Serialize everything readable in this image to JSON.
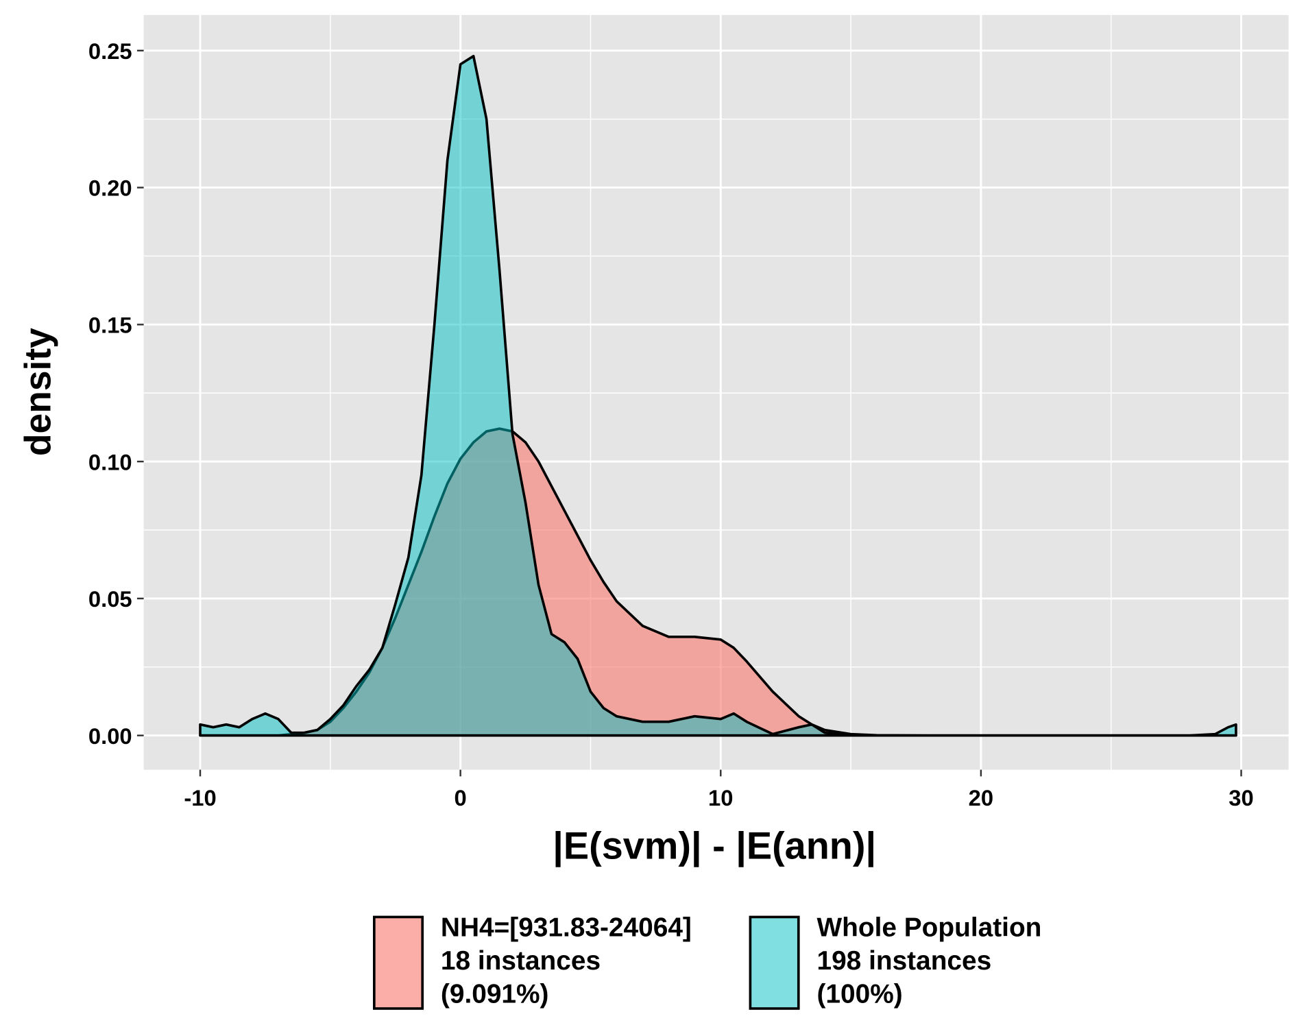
{
  "chart_data": {
    "type": "density",
    "x_label": "|E(svm)| - |E(ann)|",
    "y_label": "density",
    "x": [
      -10,
      -9.5,
      -9,
      -8.5,
      -8,
      -7.5,
      -7,
      -6.5,
      -6,
      -5.5,
      -5,
      -4.5,
      -4,
      -3.5,
      -3,
      -2.5,
      -2,
      -1.5,
      -1,
      -0.5,
      0,
      0.5,
      1,
      1.5,
      2,
      2.5,
      3,
      3.5,
      4,
      4.5,
      5,
      5.5,
      6,
      7,
      8,
      9,
      10,
      10.5,
      11,
      12,
      13,
      13.5,
      14,
      15,
      16,
      18,
      20,
      25,
      28,
      29,
      29.5,
      29.8
    ],
    "series": [
      {
        "name": "NH4=[931.83-24064]\n18 instances\n(9.091%)",
        "color": "#F8766D",
        "values": [
          0,
          0,
          0,
          0,
          0,
          0,
          0,
          0.0005,
          0.001,
          0.002,
          0.005,
          0.01,
          0.016,
          0.023,
          0.032,
          0.043,
          0.055,
          0.067,
          0.08,
          0.092,
          0.101,
          0.107,
          0.111,
          0.112,
          0.111,
          0.107,
          0.1,
          0.091,
          0.082,
          0.073,
          0.064,
          0.056,
          0.049,
          0.04,
          0.036,
          0.036,
          0.035,
          0.032,
          0.027,
          0.016,
          0.007,
          0.004,
          0.002,
          0.0005,
          0.0001,
          0,
          0,
          0,
          0,
          0,
          0,
          0
        ]
      },
      {
        "name": "Whole Population\n198 instances\n(100%)",
        "color": "#00BFC4",
        "values": [
          0.004,
          0.003,
          0.004,
          0.003,
          0.006,
          0.008,
          0.006,
          0.001,
          0.001,
          0.002,
          0.006,
          0.011,
          0.018,
          0.024,
          0.032,
          0.048,
          0.065,
          0.095,
          0.15,
          0.21,
          0.245,
          0.248,
          0.225,
          0.17,
          0.11,
          0.085,
          0.055,
          0.037,
          0.034,
          0.028,
          0.016,
          0.01,
          0.007,
          0.005,
          0.005,
          0.007,
          0.006,
          0.008,
          0.005,
          0.0005,
          0.003,
          0.004,
          0.001,
          0.0002,
          0,
          0,
          0,
          0,
          0,
          0.0005,
          0.003,
          0.004
        ]
      }
    ],
    "xlim": [
      -12.17,
      31.82
    ],
    "ylim": [
      -0.0125,
      0.263
    ],
    "xticks": [
      -10,
      0,
      10,
      20,
      30
    ],
    "yticks": [
      {
        "value": 0,
        "label": "0.00"
      },
      {
        "value": 0.05,
        "label": "0.05"
      },
      {
        "value": 0.1,
        "label": "0.10"
      },
      {
        "value": 0.15,
        "label": "0.15"
      },
      {
        "value": 0.2,
        "label": "0.20"
      },
      {
        "value": 0.25,
        "label": "0.25"
      }
    ],
    "grid": true,
    "legend": "bottom"
  }
}
